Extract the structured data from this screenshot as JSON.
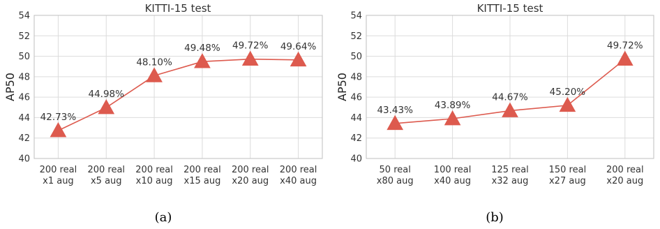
{
  "chart_data": [
    {
      "type": "line",
      "title": "KITTI-15 test",
      "ylabel": "AP50",
      "ylim": [
        40,
        54
      ],
      "yticks": [
        40,
        42,
        44,
        46,
        48,
        50,
        52,
        54
      ],
      "grid": true,
      "marker": "triangle",
      "color": "#dd5a4e",
      "categories": [
        [
          "200 real",
          "x1 aug"
        ],
        [
          "200 real",
          "x5 aug"
        ],
        [
          "200 real",
          "x10 aug"
        ],
        [
          "200 real",
          "x15 aug"
        ],
        [
          "200 real",
          "x20 aug"
        ],
        [
          "200 real",
          "x40 aug"
        ]
      ],
      "values": [
        42.73,
        44.98,
        48.1,
        49.48,
        49.72,
        49.64
      ],
      "data_labels": [
        "42.73%",
        "44.98%",
        "48.10%",
        "49.48%",
        "49.72%",
        "49.64%"
      ],
      "caption": "(a)"
    },
    {
      "type": "line",
      "title": "KITTI-15 test",
      "ylabel": "AP50",
      "ylim": [
        40,
        54
      ],
      "yticks": [
        40,
        42,
        44,
        46,
        48,
        50,
        52,
        54
      ],
      "grid": true,
      "marker": "triangle",
      "color": "#dd5a4e",
      "categories": [
        [
          "50 real",
          "x80 aug"
        ],
        [
          "100 real",
          "x40 aug"
        ],
        [
          "125 real",
          "x32 aug"
        ],
        [
          "150 real",
          "x27 aug"
        ],
        [
          "200 real",
          "x20 aug"
        ]
      ],
      "values": [
        43.43,
        43.89,
        44.67,
        45.2,
        49.72
      ],
      "data_labels": [
        "43.43%",
        "43.89%",
        "44.67%",
        "45.20%",
        "49.72%"
      ],
      "caption": "(b)"
    }
  ]
}
